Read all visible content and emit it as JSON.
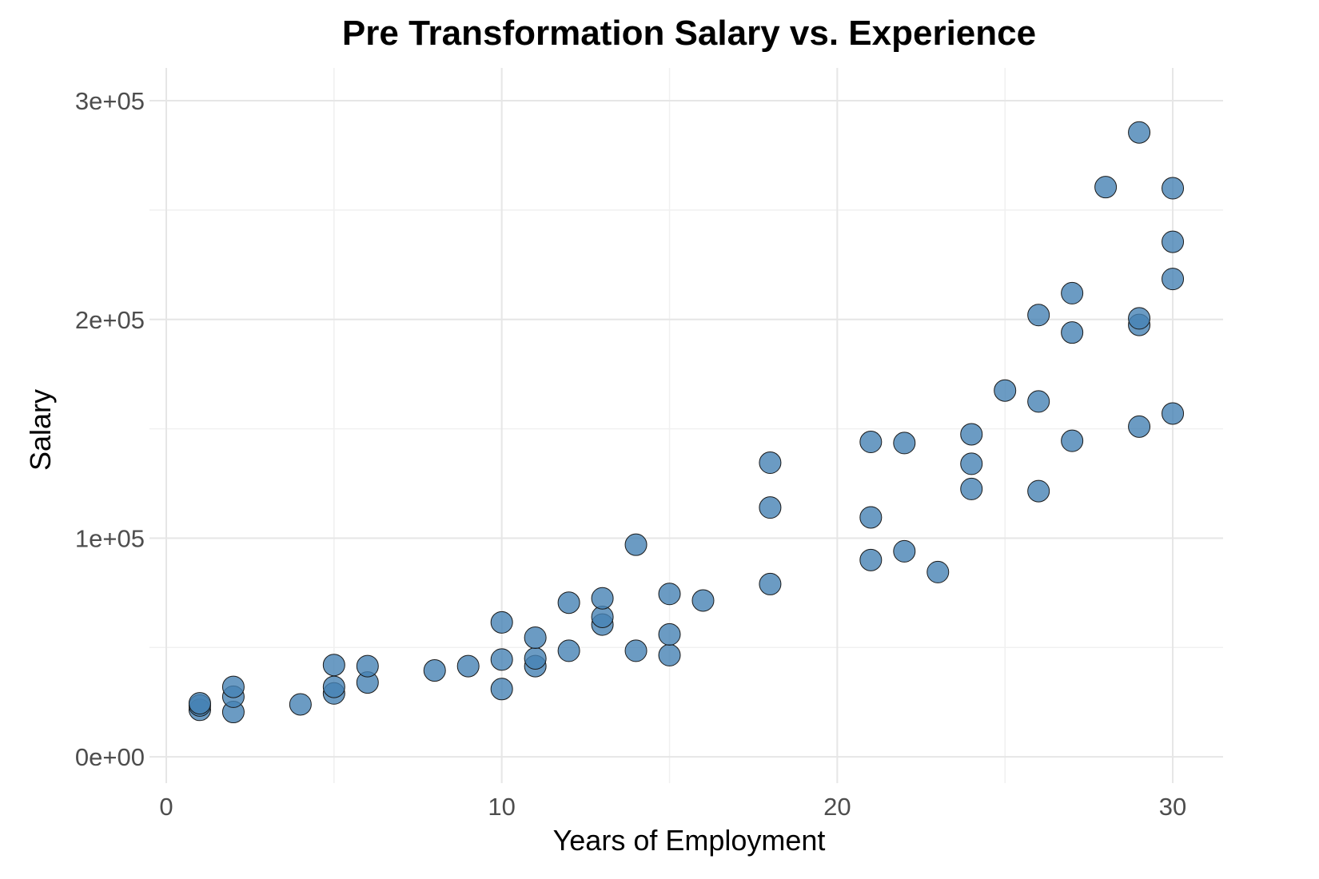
{
  "chart_data": {
    "type": "scatter",
    "title": "Pre Transformation Salary vs. Experience",
    "xlabel": "Years of Employment",
    "ylabel": "Salary",
    "xlim": [
      -0.5,
      31.5
    ],
    "ylim": [
      -12000,
      315000
    ],
    "grid": true,
    "legend": "none",
    "x_ticks": [
      0,
      10,
      20,
      30
    ],
    "x_tick_labels": [
      "0",
      "10",
      "20",
      "30"
    ],
    "x_minor": [
      5,
      15,
      25
    ],
    "y_ticks": [
      0,
      100000,
      200000,
      300000
    ],
    "y_tick_labels": [
      "0e+00",
      "1e+05",
      "2e+05",
      "3e+05"
    ],
    "y_minor": [
      50000,
      150000,
      250000
    ],
    "point_color": "#4682b4",
    "points": [
      {
        "x": 1,
        "y": 21500
      },
      {
        "x": 1,
        "y": 23500
      },
      {
        "x": 1,
        "y": 24500
      },
      {
        "x": 2,
        "y": 20500
      },
      {
        "x": 2,
        "y": 27500
      },
      {
        "x": 2,
        "y": 32000
      },
      {
        "x": 4,
        "y": 24000
      },
      {
        "x": 5,
        "y": 29000
      },
      {
        "x": 5,
        "y": 32000
      },
      {
        "x": 5,
        "y": 42000
      },
      {
        "x": 6,
        "y": 34000
      },
      {
        "x": 6,
        "y": 41500
      },
      {
        "x": 8,
        "y": 39500
      },
      {
        "x": 9,
        "y": 41500
      },
      {
        "x": 10,
        "y": 31000
      },
      {
        "x": 10,
        "y": 44500
      },
      {
        "x": 10,
        "y": 61500
      },
      {
        "x": 11,
        "y": 41500
      },
      {
        "x": 11,
        "y": 45000
      },
      {
        "x": 11,
        "y": 54500
      },
      {
        "x": 12,
        "y": 48500
      },
      {
        "x": 12,
        "y": 70500
      },
      {
        "x": 13,
        "y": 60500
      },
      {
        "x": 13,
        "y": 64000
      },
      {
        "x": 13,
        "y": 72500
      },
      {
        "x": 14,
        "y": 48500
      },
      {
        "x": 14,
        "y": 97000
      },
      {
        "x": 15,
        "y": 46500
      },
      {
        "x": 15,
        "y": 56000
      },
      {
        "x": 15,
        "y": 74500
      },
      {
        "x": 16,
        "y": 71500
      },
      {
        "x": 18,
        "y": 79000
      },
      {
        "x": 18,
        "y": 114000
      },
      {
        "x": 18,
        "y": 134500
      },
      {
        "x": 21,
        "y": 90000
      },
      {
        "x": 21,
        "y": 109500
      },
      {
        "x": 21,
        "y": 144000
      },
      {
        "x": 22,
        "y": 94000
      },
      {
        "x": 22,
        "y": 143500
      },
      {
        "x": 23,
        "y": 84500
      },
      {
        "x": 24,
        "y": 122500
      },
      {
        "x": 24,
        "y": 134000
      },
      {
        "x": 24,
        "y": 147500
      },
      {
        "x": 25,
        "y": 167500
      },
      {
        "x": 26,
        "y": 121500
      },
      {
        "x": 26,
        "y": 162500
      },
      {
        "x": 26,
        "y": 202000
      },
      {
        "x": 27,
        "y": 144500
      },
      {
        "x": 27,
        "y": 194000
      },
      {
        "x": 27,
        "y": 212000
      },
      {
        "x": 28,
        "y": 260500
      },
      {
        "x": 29,
        "y": 151000
      },
      {
        "x": 29,
        "y": 197500
      },
      {
        "x": 29,
        "y": 200500
      },
      {
        "x": 29,
        "y": 285500
      },
      {
        "x": 30,
        "y": 157000
      },
      {
        "x": 30,
        "y": 218500
      },
      {
        "x": 30,
        "y": 235500
      },
      {
        "x": 30,
        "y": 260000
      }
    ]
  }
}
